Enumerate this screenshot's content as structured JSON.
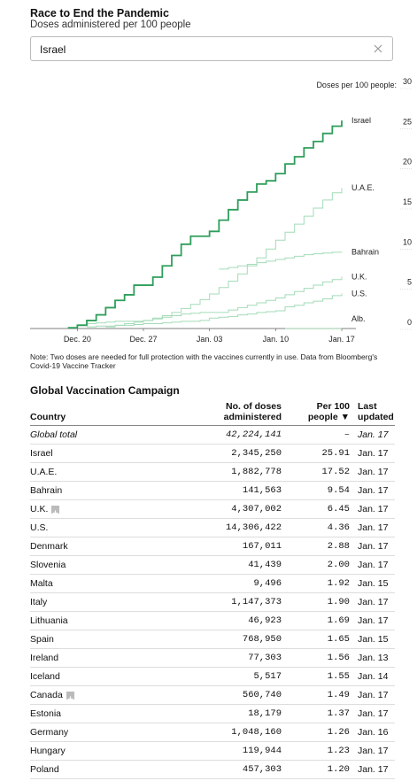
{
  "header": {
    "title": "Race to End the Pandemic",
    "subtitle": "Doses administered per 100 people"
  },
  "search": {
    "value": "Israel"
  },
  "chart_data": {
    "type": "line",
    "y_label": "Doses per 100 people:",
    "categories": [
      null,
      null,
      null,
      null,
      null,
      "Dec. 20",
      null,
      null,
      null,
      null,
      null,
      null,
      "Dec. 27",
      null,
      null,
      null,
      null,
      null,
      null,
      "Jan. 03",
      null,
      null,
      null,
      null,
      null,
      null,
      "Jan. 10",
      null,
      null,
      null,
      null,
      null,
      null,
      "Jan. 17"
    ],
    "ylim": [
      0,
      30
    ],
    "yticks": [
      0,
      5,
      10,
      15,
      20,
      25,
      30
    ],
    "series": [
      {
        "name": "Israel",
        "color": "#2f9e5b",
        "values": [
          null,
          null,
          null,
          null,
          0.1,
          0.4,
          1.0,
          1.7,
          2.6,
          3.5,
          4.2,
          5.4,
          5.4,
          6.4,
          7.8,
          9.1,
          10.5,
          11.5,
          11.5,
          12.1,
          13.5,
          14.8,
          16.0,
          17.0,
          18.0,
          18.4,
          19.3,
          20.5,
          21.4,
          22.5,
          23.3,
          24.3,
          25.2,
          25.91
        ]
      },
      {
        "name": "U.A.E.",
        "color": "#a3dbb8",
        "values": [
          null,
          null,
          null,
          null,
          null,
          null,
          null,
          null,
          0.2,
          0.4,
          0.6,
          0.8,
          1.0,
          1.3,
          1.6,
          2.0,
          2.5,
          3.0,
          3.6,
          4.3,
          5.1,
          5.9,
          6.8,
          7.8,
          8.8,
          9.9,
          11.0,
          12.0,
          13.0,
          14.0,
          15.0,
          16.0,
          16.9,
          17.52
        ]
      },
      {
        "name": "Bahrain",
        "color": "#a3dbb8",
        "values": [
          null,
          null,
          null,
          null,
          null,
          null,
          null,
          null,
          null,
          null,
          null,
          null,
          null,
          null,
          null,
          null,
          null,
          null,
          null,
          null,
          7.4,
          7.6,
          7.8,
          8.0,
          8.2,
          8.4,
          8.6,
          8.8,
          9.0,
          9.2,
          9.3,
          9.4,
          9.5,
          9.54
        ]
      },
      {
        "name": "U.K.",
        "color": "#a3dbb8",
        "values": [
          null,
          null,
          null,
          null,
          null,
          0.5,
          0.6,
          0.7,
          0.8,
          0.9,
          0.9,
          0.9,
          1.0,
          1.2,
          1.4,
          1.6,
          1.8,
          1.9,
          2.0,
          2.0,
          2.0,
          2.3,
          2.6,
          2.9,
          3.2,
          3.5,
          3.8,
          4.2,
          4.6,
          5.0,
          5.4,
          5.8,
          6.1,
          6.45
        ]
      },
      {
        "name": "U.S.",
        "color": "#a3dbb8",
        "values": [
          null,
          null,
          null,
          null,
          null,
          null,
          0.2,
          0.3,
          0.3,
          0.4,
          0.4,
          0.5,
          0.6,
          0.6,
          0.7,
          0.8,
          0.9,
          0.9,
          1.0,
          1.3,
          1.4,
          1.5,
          1.7,
          1.8,
          2.0,
          2.1,
          2.2,
          2.7,
          2.9,
          3.2,
          3.4,
          3.7,
          4.1,
          4.36
        ]
      },
      {
        "name": "Alb.",
        "color": "#a3dbb8",
        "values": [
          null,
          null,
          null,
          null,
          null,
          null,
          null,
          null,
          null,
          null,
          null,
          null,
          null,
          null,
          null,
          null,
          null,
          null,
          null,
          null,
          null,
          null,
          null,
          null,
          null,
          null,
          null,
          0.01,
          0.01,
          0.01,
          0.01,
          0.01,
          0.01,
          0.01
        ]
      }
    ]
  },
  "note": "Note: Two doses are needed for full protection with the vaccines currently in use. Data from Bloomberg's Covid-19 Vaccine Tracker",
  "table": {
    "title": "Global Vaccination Campaign",
    "columns": [
      [
        "Country"
      ],
      [
        "No. of doses",
        "administered"
      ],
      [
        "Per 100",
        "people ▼"
      ],
      [
        "Last",
        "updated"
      ]
    ],
    "total": {
      "cells": [
        "Global total",
        "42,224,141",
        "–",
        "Jan. 17"
      ]
    },
    "rows": [
      {
        "cells": [
          "Israel",
          "2,345,250",
          "25.91",
          "Jan. 17"
        ]
      },
      {
        "cells": [
          "U.A.E.",
          "1,882,778",
          "17.52",
          "Jan. 17"
        ]
      },
      {
        "cells": [
          "Bahrain",
          "141,563",
          "9.54",
          "Jan. 17"
        ]
      },
      {
        "cells": [
          "U.K.",
          "4,307,002",
          "6.45",
          "Jan. 17"
        ],
        "expandable": true
      },
      {
        "cells": [
          "U.S.",
          "14,306,422",
          "4.36",
          "Jan. 17"
        ]
      },
      {
        "cells": [
          "Denmark",
          "167,011",
          "2.88",
          "Jan. 17"
        ]
      },
      {
        "cells": [
          "Slovenia",
          "41,439",
          "2.00",
          "Jan. 17"
        ]
      },
      {
        "cells": [
          "Malta",
          "9,496",
          "1.92",
          "Jan. 15"
        ]
      },
      {
        "cells": [
          "Italy",
          "1,147,373",
          "1.90",
          "Jan. 17"
        ]
      },
      {
        "cells": [
          "Lithuania",
          "46,923",
          "1.69",
          "Jan. 17"
        ]
      },
      {
        "cells": [
          "Spain",
          "768,950",
          "1.65",
          "Jan. 15"
        ]
      },
      {
        "cells": [
          "Ireland",
          "77,303",
          "1.56",
          "Jan. 13"
        ]
      },
      {
        "cells": [
          "Iceland",
          "5,517",
          "1.55",
          "Jan. 14"
        ]
      },
      {
        "cells": [
          "Canada",
          "560,740",
          "1.49",
          "Jan. 17"
        ],
        "expandable": true
      },
      {
        "cells": [
          "Estonia",
          "18,179",
          "1.37",
          "Jan. 17"
        ]
      },
      {
        "cells": [
          "Germany",
          "1,048,160",
          "1.26",
          "Jan. 16"
        ]
      },
      {
        "cells": [
          "Hungary",
          "119,944",
          "1.23",
          "Jan. 17"
        ]
      },
      {
        "cells": [
          "Poland",
          "457,303",
          "1.20",
          "Jan. 17"
        ]
      }
    ]
  }
}
